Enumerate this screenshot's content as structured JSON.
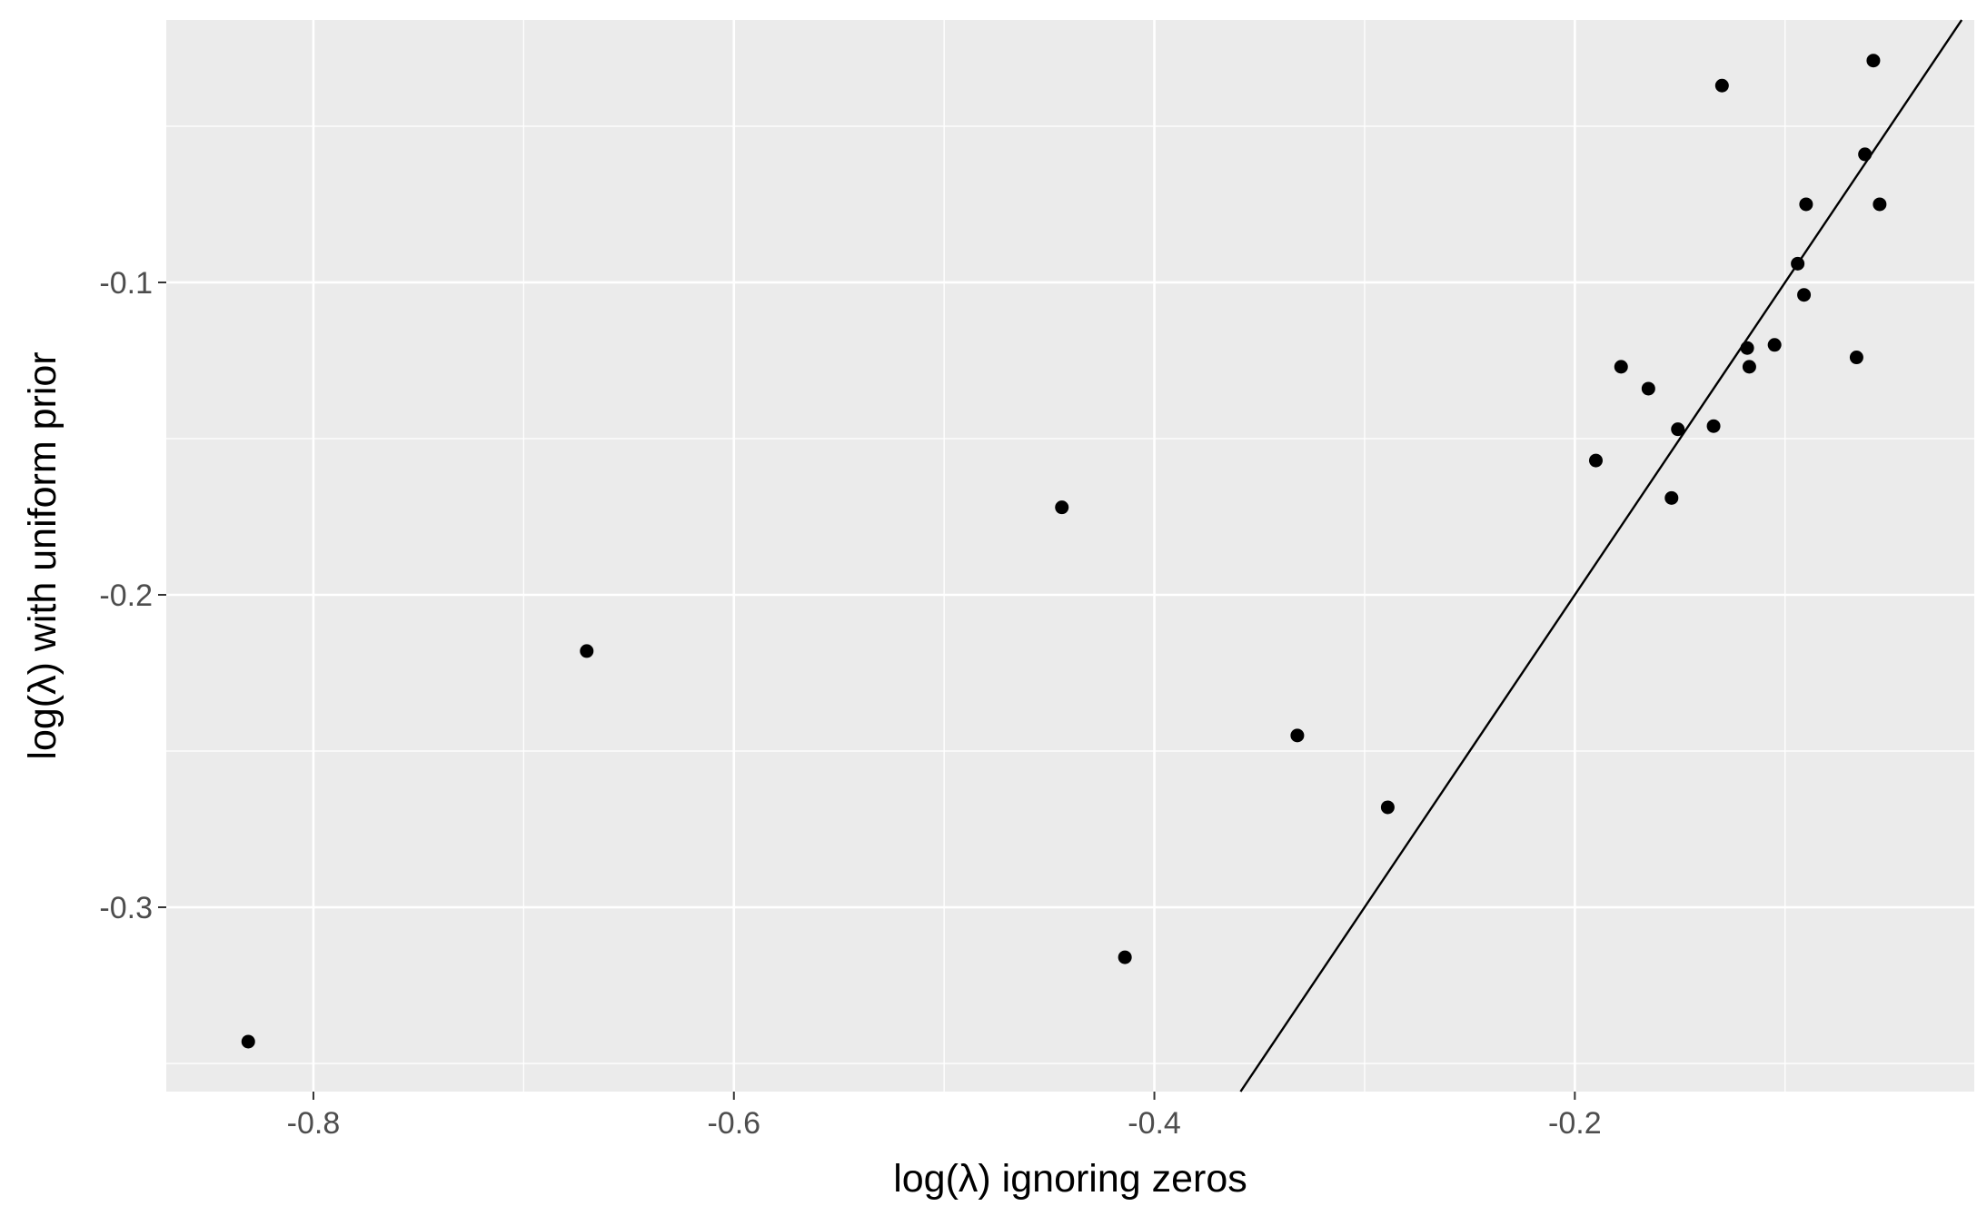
{
  "chart_data": {
    "type": "scatter",
    "title": "",
    "xlabel": "log(λ) ignoring zeros",
    "ylabel": "log(λ) with uniform prior",
    "xlim": [
      -0.87,
      -0.01
    ],
    "ylim": [
      -0.359,
      -0.016
    ],
    "x_ticks": [
      -0.8,
      -0.6,
      -0.4,
      -0.2
    ],
    "x_tick_labels": [
      "-0.8",
      "-0.6",
      "-0.4",
      "-0.2"
    ],
    "y_ticks": [
      -0.3,
      -0.2,
      -0.1
    ],
    "y_tick_labels": [
      "-0.3",
      "-0.2",
      "-0.1"
    ],
    "grid": true,
    "legend": "none",
    "colors": {
      "panel": "#ebebeb",
      "grid": "#ffffff",
      "point": "#000000",
      "line": "#000000"
    },
    "points": [
      {
        "x": -0.831,
        "y": -0.343
      },
      {
        "x": -0.67,
        "y": -0.218
      },
      {
        "x": -0.444,
        "y": -0.172
      },
      {
        "x": -0.414,
        "y": -0.316
      },
      {
        "x": -0.332,
        "y": -0.245
      },
      {
        "x": -0.289,
        "y": -0.268
      },
      {
        "x": -0.19,
        "y": -0.157
      },
      {
        "x": -0.178,
        "y": -0.127
      },
      {
        "x": -0.165,
        "y": -0.134
      },
      {
        "x": -0.154,
        "y": -0.169
      },
      {
        "x": -0.151,
        "y": -0.147
      },
      {
        "x": -0.134,
        "y": -0.146
      },
      {
        "x": -0.13,
        "y": -0.037
      },
      {
        "x": -0.118,
        "y": -0.121
      },
      {
        "x": -0.117,
        "y": -0.127
      },
      {
        "x": -0.105,
        "y": -0.12
      },
      {
        "x": -0.09,
        "y": -0.075
      },
      {
        "x": -0.094,
        "y": -0.094
      },
      {
        "x": -0.091,
        "y": -0.104
      },
      {
        "x": -0.066,
        "y": -0.124
      },
      {
        "x": -0.062,
        "y": -0.059
      },
      {
        "x": -0.058,
        "y": -0.029
      },
      {
        "x": -0.055,
        "y": -0.075
      }
    ],
    "reference_line": {
      "slope": 1,
      "intercept": 0
    }
  }
}
